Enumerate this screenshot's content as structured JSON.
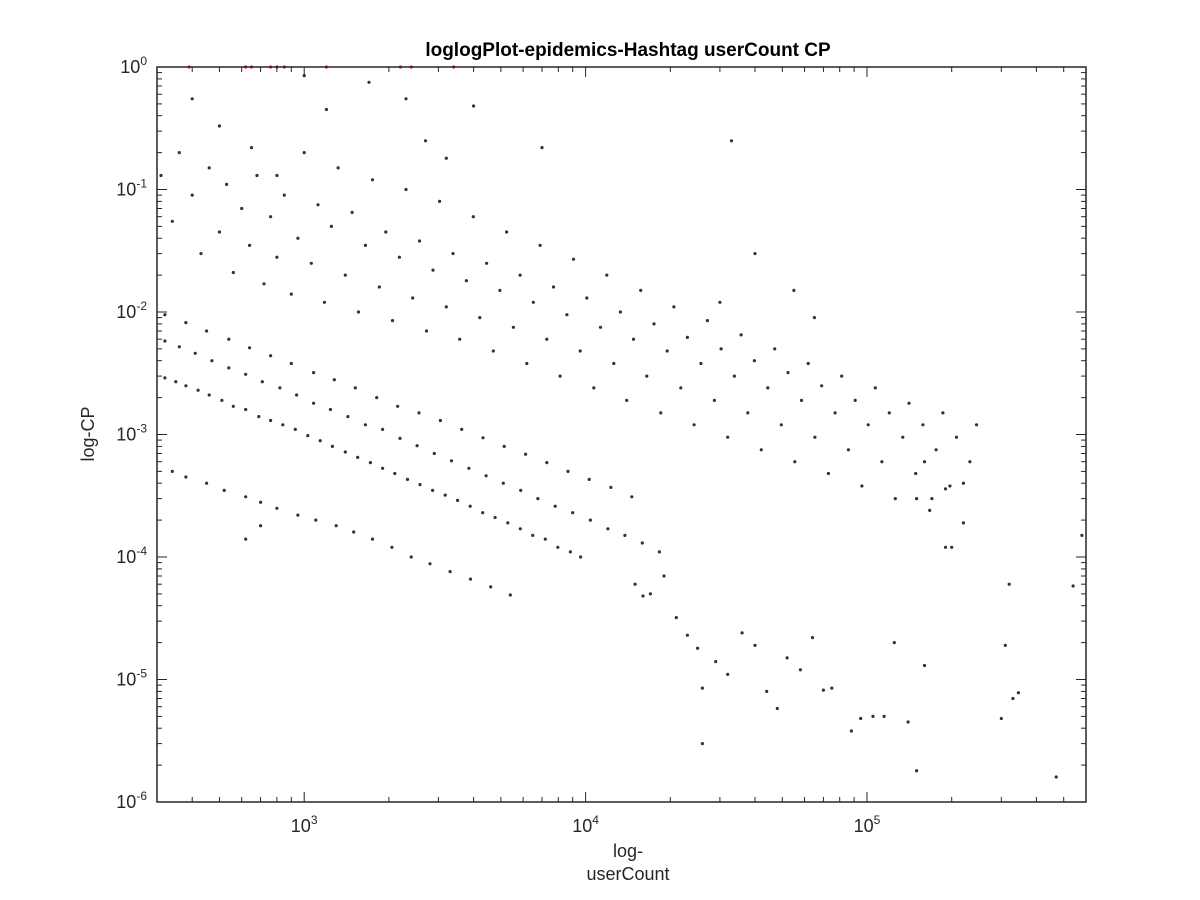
{
  "chart_data": {
    "type": "scatter",
    "title": "loglogPlot-epidemics-Hashtag userCount CP",
    "xlabel": [
      "log-",
      "userCount"
    ],
    "ylabel": "log-CP",
    "xscale": "log",
    "yscale": "log",
    "xlim": [
      300,
      600000
    ],
    "ylim": [
      1e-06,
      1
    ],
    "x_ticks": [
      {
        "value": 1000,
        "base": "10",
        "exp": "3"
      },
      {
        "value": 10000,
        "base": "10",
        "exp": "4"
      },
      {
        "value": 100000,
        "base": "10",
        "exp": "5"
      }
    ],
    "y_ticks": [
      {
        "value": 1e-06,
        "base": "10",
        "exp": "-6"
      },
      {
        "value": 1e-05,
        "base": "10",
        "exp": "-5"
      },
      {
        "value": 0.0001,
        "base": "10",
        "exp": "-4"
      },
      {
        "value": 0.001,
        "base": "10",
        "exp": "-3"
      },
      {
        "value": 0.01,
        "base": "10",
        "exp": "-2"
      },
      {
        "value": 0.1,
        "base": "10",
        "exp": "-1"
      },
      {
        "value": 1,
        "base": "10",
        "exp": "0"
      }
    ],
    "grid": false,
    "colors": {
      "main": "#333333",
      "highlight": "#e8141c",
      "axes": "#262626"
    },
    "series": [
      {
        "marker": "dot",
        "color": "#333333",
        "points": [
          [
            320,
            0.0029
          ],
          [
            350,
            0.0027
          ],
          [
            380,
            0.0025
          ],
          [
            420,
            0.0023
          ],
          [
            460,
            0.0021
          ],
          [
            510,
            0.0019
          ],
          [
            560,
            0.0017
          ],
          [
            620,
            0.0016
          ],
          [
            690,
            0.0014
          ],
          [
            760,
            0.0013
          ],
          [
            840,
            0.0012
          ],
          [
            930,
            0.0011
          ],
          [
            1030,
            0.00098
          ],
          [
            1140,
            0.00089
          ],
          [
            1260,
            0.0008
          ],
          [
            1400,
            0.00072
          ],
          [
            1550,
            0.00065
          ],
          [
            1720,
            0.00059
          ],
          [
            1900,
            0.00053
          ],
          [
            2100,
            0.00048
          ],
          [
            2330,
            0.00043
          ],
          [
            2580,
            0.00039
          ],
          [
            2860,
            0.00035
          ],
          [
            3170,
            0.00032
          ],
          [
            3510,
            0.00029
          ],
          [
            3890,
            0.00026
          ],
          [
            4310,
            0.00023
          ],
          [
            4770,
            0.00021
          ],
          [
            5290,
            0.00019
          ],
          [
            5860,
            0.00017
          ],
          [
            6490,
            0.00015
          ],
          [
            7190,
            0.00014
          ],
          [
            7970,
            0.00012
          ],
          [
            8830,
            0.00011
          ],
          [
            9600,
            0.0001
          ],
          [
            320,
            0.0058
          ],
          [
            360,
            0.0052
          ],
          [
            410,
            0.0046
          ],
          [
            470,
            0.004
          ],
          [
            540,
            0.0035
          ],
          [
            620,
            0.0031
          ],
          [
            710,
            0.0027
          ],
          [
            820,
            0.0024
          ],
          [
            940,
            0.0021
          ],
          [
            1080,
            0.0018
          ],
          [
            1240,
            0.0016
          ],
          [
            1430,
            0.0014
          ],
          [
            1650,
            0.0012
          ],
          [
            1900,
            0.0011
          ],
          [
            2190,
            0.00093
          ],
          [
            2520,
            0.00081
          ],
          [
            2900,
            0.0007
          ],
          [
            3340,
            0.00061
          ],
          [
            3850,
            0.00053
          ],
          [
            4430,
            0.00046
          ],
          [
            5100,
            0.0004
          ],
          [
            5880,
            0.00035
          ],
          [
            6770,
            0.0003
          ],
          [
            7800,
            0.00026
          ],
          [
            9000,
            0.00023
          ],
          [
            10400,
            0.0002
          ],
          [
            12000,
            0.00017
          ],
          [
            13800,
            0.00015
          ],
          [
            15900,
            0.00013
          ],
          [
            18300,
            0.00011
          ],
          [
            320,
            0.0095
          ],
          [
            380,
            0.0082
          ],
          [
            450,
            0.007
          ],
          [
            540,
            0.006
          ],
          [
            640,
            0.0051
          ],
          [
            760,
            0.0044
          ],
          [
            900,
            0.0038
          ],
          [
            1080,
            0.0032
          ],
          [
            1280,
            0.0028
          ],
          [
            1520,
            0.0024
          ],
          [
            1810,
            0.002
          ],
          [
            2150,
            0.0017
          ],
          [
            2560,
            0.0015
          ],
          [
            3050,
            0.0013
          ],
          [
            3630,
            0.0011
          ],
          [
            4320,
            0.00094
          ],
          [
            5140,
            0.0008
          ],
          [
            6120,
            0.00069
          ],
          [
            7280,
            0.00059
          ],
          [
            8660,
            0.0005
          ],
          [
            10300,
            0.00043
          ],
          [
            12300,
            0.00037
          ],
          [
            14600,
            0.00031
          ],
          [
            310,
            0.13
          ],
          [
            340,
            0.055
          ],
          [
            360,
            0.2
          ],
          [
            400,
            0.09
          ],
          [
            430,
            0.03
          ],
          [
            460,
            0.15
          ],
          [
            500,
            0.045
          ],
          [
            530,
            0.11
          ],
          [
            560,
            0.021
          ],
          [
            600,
            0.07
          ],
          [
            640,
            0.035
          ],
          [
            680,
            0.13
          ],
          [
            720,
            0.017
          ],
          [
            760,
            0.06
          ],
          [
            800,
            0.028
          ],
          [
            850,
            0.09
          ],
          [
            900,
            0.014
          ],
          [
            950,
            0.04
          ],
          [
            1000,
            0.2
          ],
          [
            1060,
            0.025
          ],
          [
            1120,
            0.075
          ],
          [
            1180,
            0.012
          ],
          [
            1250,
            0.05
          ],
          [
            1320,
            0.15
          ],
          [
            1400,
            0.02
          ],
          [
            1480,
            0.065
          ],
          [
            1560,
            0.01
          ],
          [
            1650,
            0.035
          ],
          [
            1750,
            0.12
          ],
          [
            1850,
            0.016
          ],
          [
            1950,
            0.045
          ],
          [
            2060,
            0.0085
          ],
          [
            2180,
            0.028
          ],
          [
            2300,
            0.1
          ],
          [
            2430,
            0.013
          ],
          [
            2570,
            0.038
          ],
          [
            2720,
            0.007
          ],
          [
            2870,
            0.022
          ],
          [
            3030,
            0.08
          ],
          [
            3200,
            0.011
          ],
          [
            3380,
            0.03
          ],
          [
            3570,
            0.006
          ],
          [
            3770,
            0.018
          ],
          [
            3990,
            0.06
          ],
          [
            4210,
            0.009
          ],
          [
            4450,
            0.025
          ],
          [
            4700,
            0.0048
          ],
          [
            4960,
            0.015
          ],
          [
            5240,
            0.045
          ],
          [
            5540,
            0.0075
          ],
          [
            5850,
            0.02
          ],
          [
            6180,
            0.0038
          ],
          [
            6520,
            0.012
          ],
          [
            6890,
            0.035
          ],
          [
            7280,
            0.006
          ],
          [
            7690,
            0.016
          ],
          [
            8120,
            0.003
          ],
          [
            8580,
            0.0095
          ],
          [
            9060,
            0.027
          ],
          [
            9570,
            0.0048
          ],
          [
            10100,
            0.013
          ],
          [
            10700,
            0.0024
          ],
          [
            11300,
            0.0075
          ],
          [
            11900,
            0.02
          ],
          [
            12600,
            0.0038
          ],
          [
            13300,
            0.01
          ],
          [
            14000,
            0.0019
          ],
          [
            14800,
            0.006
          ],
          [
            15700,
            0.015
          ],
          [
            16500,
            0.003
          ],
          [
            17500,
            0.008
          ],
          [
            18500,
            0.0015
          ],
          [
            19500,
            0.0048
          ],
          [
            20600,
            0.011
          ],
          [
            21800,
            0.0024
          ],
          [
            23000,
            0.0062
          ],
          [
            24300,
            0.0012
          ],
          [
            25700,
            0.0038
          ],
          [
            27100,
            0.0085
          ],
          [
            28700,
            0.0019
          ],
          [
            30300,
            0.005
          ],
          [
            32000,
            0.00095
          ],
          [
            33800,
            0.003
          ],
          [
            35700,
            0.0065
          ],
          [
            37700,
            0.0015
          ],
          [
            39800,
            0.004
          ],
          [
            42100,
            0.00075
          ],
          [
            44400,
            0.0024
          ],
          [
            47000,
            0.005
          ],
          [
            49600,
            0.0012
          ],
          [
            52400,
            0.0032
          ],
          [
            55400,
            0.0006
          ],
          [
            58500,
            0.0019
          ],
          [
            61800,
            0.0038
          ],
          [
            65300,
            0.00095
          ],
          [
            69000,
            0.0025
          ],
          [
            72900,
            0.00048
          ],
          [
            77000,
            0.0015
          ],
          [
            81300,
            0.003
          ],
          [
            85900,
            0.00075
          ],
          [
            90800,
            0.0019
          ],
          [
            95900,
            0.00038
          ],
          [
            101000,
            0.0012
          ],
          [
            107000,
            0.0024
          ],
          [
            113000,
            0.0006
          ],
          [
            120000,
            0.0015
          ],
          [
            126000,
            0.0003
          ],
          [
            134000,
            0.00095
          ],
          [
            141000,
            0.0018
          ],
          [
            149000,
            0.00048
          ],
          [
            158000,
            0.0012
          ],
          [
            167000,
            0.00024
          ],
          [
            176000,
            0.00075
          ],
          [
            186000,
            0.0015
          ],
          [
            197000,
            0.00038
          ],
          [
            208000,
            0.00095
          ],
          [
            220000,
            0.00019
          ],
          [
            232000,
            0.0006
          ],
          [
            245000,
            0.0012
          ],
          [
            340,
            0.0005
          ],
          [
            380,
            0.00045
          ],
          [
            450,
            0.0004
          ],
          [
            520,
            0.00035
          ],
          [
            620,
            0.00031
          ],
          [
            700,
            0.00028
          ],
          [
            800,
            0.00025
          ],
          [
            950,
            0.00022
          ],
          [
            1100,
            0.0002
          ],
          [
            1300,
            0.00018
          ],
          [
            1500,
            0.00016
          ],
          [
            1750,
            0.00014
          ],
          [
            2050,
            0.00012
          ],
          [
            2400,
            0.0001
          ],
          [
            2800,
            8.8e-05
          ],
          [
            3300,
            7.6e-05
          ],
          [
            3900,
            6.6e-05
          ],
          [
            4600,
            5.7e-05
          ],
          [
            5400,
            4.9e-05
          ],
          [
            620,
            0.00014
          ],
          [
            700,
            0.00018
          ],
          [
            15000,
            6e-05
          ],
          [
            16000,
            4.8e-05
          ],
          [
            17000,
            5e-05
          ],
          [
            19000,
            7e-05
          ],
          [
            21000,
            3.2e-05
          ],
          [
            23000,
            2.3e-05
          ],
          [
            25000,
            1.8e-05
          ],
          [
            26000,
            8.5e-06
          ],
          [
            26000,
            3e-06
          ],
          [
            29000,
            1.4e-05
          ],
          [
            32000,
            1.1e-05
          ],
          [
            36000,
            2.4e-05
          ],
          [
            40000,
            1.9e-05
          ],
          [
            44000,
            8e-06
          ],
          [
            48000,
            5.8e-06
          ],
          [
            52000,
            1.5e-05
          ],
          [
            58000,
            1.2e-05
          ],
          [
            64000,
            2.2e-05
          ],
          [
            70000,
            8.2e-06
          ],
          [
            75000,
            8.5e-06
          ],
          [
            88000,
            3.8e-06
          ],
          [
            95000,
            4.8e-06
          ],
          [
            105000,
            5e-06
          ],
          [
            115000,
            5e-06
          ],
          [
            125000,
            2e-05
          ],
          [
            140000,
            4.5e-06
          ],
          [
            150000,
            1.8e-06
          ],
          [
            160000,
            1.3e-05
          ],
          [
            300000,
            4.8e-06
          ],
          [
            310000,
            1.9e-05
          ],
          [
            320000,
            6e-05
          ],
          [
            330000,
            7e-06
          ],
          [
            345000,
            7.8e-06
          ],
          [
            470000,
            1.6e-06
          ],
          [
            540000,
            5.8e-05
          ],
          [
            580000,
            0.00015
          ],
          [
            190000,
            0.00012
          ],
          [
            200000,
            0.00012
          ],
          [
            150000,
            0.0003
          ],
          [
            160000,
            0.0006
          ],
          [
            170000,
            0.0003
          ],
          [
            190000,
            0.00036
          ],
          [
            220000,
            0.0004
          ],
          [
            400,
            0.55
          ],
          [
            500,
            0.33
          ],
          [
            650,
            0.22
          ],
          [
            800,
            0.13
          ],
          [
            1000,
            0.85
          ],
          [
            1200,
            0.45
          ],
          [
            1700,
            0.75
          ],
          [
            2300,
            0.55
          ],
          [
            2700,
            0.25
          ],
          [
            3200,
            0.18
          ],
          [
            4000,
            0.48
          ],
          [
            7000,
            0.22
          ],
          [
            33000,
            0.25
          ],
          [
            55000,
            0.015
          ],
          [
            65000,
            0.009
          ],
          [
            40000,
            0.03
          ],
          [
            30000,
            0.012
          ]
        ]
      },
      {
        "marker": "dot",
        "color": "#e8141c",
        "points": [
          [
            390,
            1
          ],
          [
            620,
            1
          ],
          [
            650,
            1
          ],
          [
            760,
            1
          ],
          [
            800,
            1
          ],
          [
            850,
            1
          ],
          [
            1200,
            1
          ],
          [
            2200,
            1
          ],
          [
            2400,
            1
          ],
          [
            3400,
            1
          ]
        ]
      }
    ]
  }
}
